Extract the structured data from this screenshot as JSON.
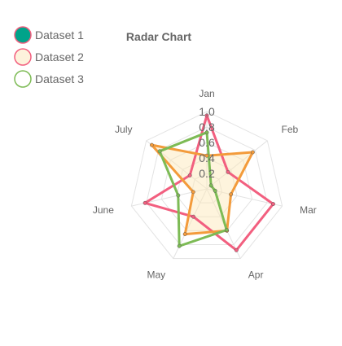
{
  "chart_data": {
    "type": "radar",
    "title": "Radar Chart",
    "categories": [
      "Jan",
      "Feb",
      "Mar",
      "Apr",
      "May",
      "June",
      "July"
    ],
    "rlim": [
      0,
      1.0
    ],
    "ticks": [
      "0.2",
      "0.4",
      "0.6",
      "0.8",
      "1.0"
    ],
    "grid": true,
    "legend_position": "top-left",
    "series": [
      {
        "name": "Dataset 1",
        "values": [
          0.95,
          0.35,
          0.88,
          0.88,
          0.4,
          0.82,
          0.28
        ],
        "border_color": "#f25f7f",
        "fill_color": "rgba(242,95,127,0.00)",
        "legend_fill": "#00a38a",
        "legend_border": "#f25f7f"
      },
      {
        "name": "Dataset 2",
        "values": [
          0.43,
          0.76,
          0.32,
          0.6,
          0.65,
          0.18,
          0.91
        ],
        "border_color": "#f39b3b",
        "fill_color": "rgba(253,230,180,0.45)",
        "legend_fill": "#fdf2dc",
        "legend_border": "#f25f7f"
      },
      {
        "name": "Dataset 3",
        "values": [
          0.73,
          0.07,
          0.11,
          0.59,
          0.82,
          0.38,
          0.78
        ],
        "border_color": "#7dbb55",
        "fill_color": "rgba(125,187,85,0.00)",
        "legend_fill": "#ffffff",
        "legend_border": "#7dbb55"
      }
    ]
  }
}
